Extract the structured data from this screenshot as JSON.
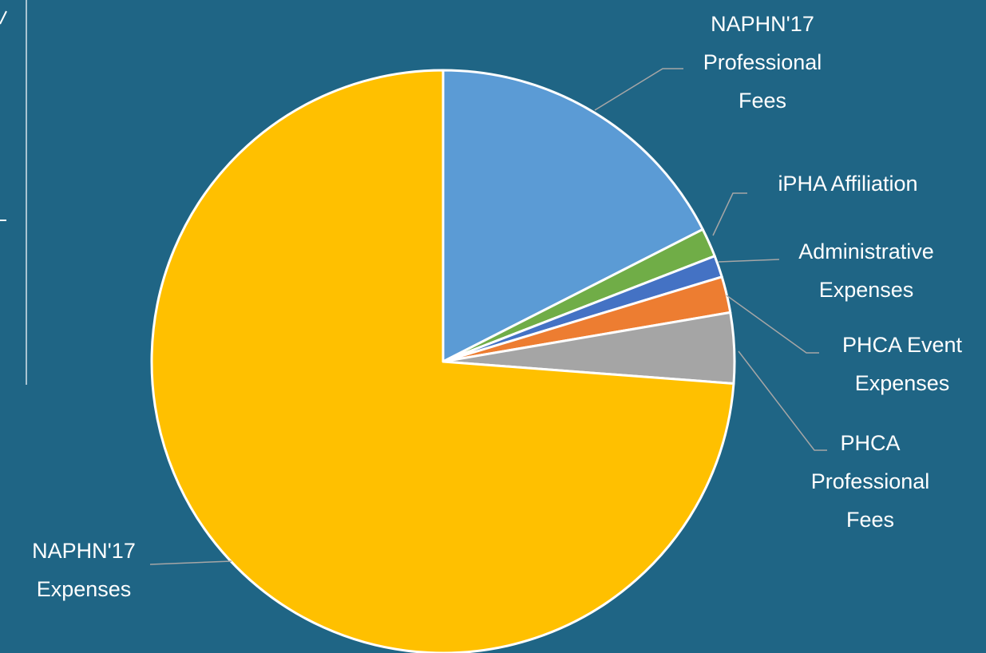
{
  "chart_data": {
    "type": "pie",
    "categories": [
      "NAPHN'17 Professional Fees",
      "iPHA Affiliation",
      "Administrative Expenses",
      "PHCA Event Expenses",
      "PHCA Professional Fees",
      "NAPHN'17 Expenses"
    ],
    "values": [
      17.5,
      1.6,
      1.2,
      2.0,
      3.9,
      73.8
    ],
    "colors": [
      "#5b9bd5",
      "#70ad47",
      "#4472c4",
      "#ed7d31",
      "#a5a5a5",
      "#ffc000"
    ]
  }
}
